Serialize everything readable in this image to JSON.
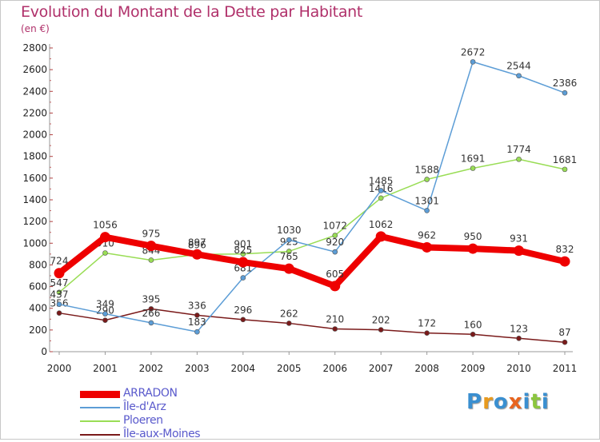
{
  "title": "Evolution du Montant de la Dette par Habitant",
  "unit": "(en €)",
  "brand": {
    "text": "Proxiti",
    "colors": [
      "#3a8fd0",
      "#e89a1e",
      "#3a8fd0",
      "#e8641e",
      "#3a8fd0",
      "#8cc63f",
      "#3a8fd0"
    ]
  },
  "chart_data": {
    "type": "line",
    "title": "Evolution du Montant de la Dette par Habitant",
    "ylabel": "(en €)",
    "xlabel": "",
    "categories": [
      "2000",
      "2001",
      "2002",
      "2003",
      "2004",
      "2005",
      "2006",
      "2007",
      "2008",
      "2009",
      "2010",
      "2011"
    ],
    "ylim": [
      0,
      2800
    ],
    "yticks": [
      0,
      200,
      400,
      600,
      800,
      1000,
      1200,
      1400,
      1600,
      1800,
      2000,
      2200,
      2400,
      2600,
      2800
    ],
    "grid": false,
    "legend": "bottom-left",
    "series": [
      {
        "name": "Île-aux-Moines",
        "color": "#7a1a1a",
        "values": [
          356,
          290,
          395,
          336,
          296,
          262,
          210,
          202,
          172,
          160,
          123,
          87
        ]
      },
      {
        "name": "Ploeren",
        "color": "#99dd55",
        "values": [
          547,
          910,
          844,
          896,
          901,
          925,
          1072,
          1416,
          1588,
          1691,
          1774,
          1681
        ]
      },
      {
        "name": "Île-d'Arz",
        "color": "#5c9dd6",
        "values": [
          437,
          349,
          266,
          183,
          681,
          1030,
          920,
          1485,
          1301,
          2672,
          2544,
          2386
        ]
      },
      {
        "name": "ARRADON",
        "color": "#ee0000",
        "values": [
          724,
          1056,
          975,
          897,
          825,
          765,
          605,
          1062,
          962,
          950,
          931,
          832
        ]
      }
    ],
    "legend_order": [
      "ARRADON",
      "Île-d'Arz",
      "Ploeren",
      "Île-aux-Moines"
    ]
  }
}
